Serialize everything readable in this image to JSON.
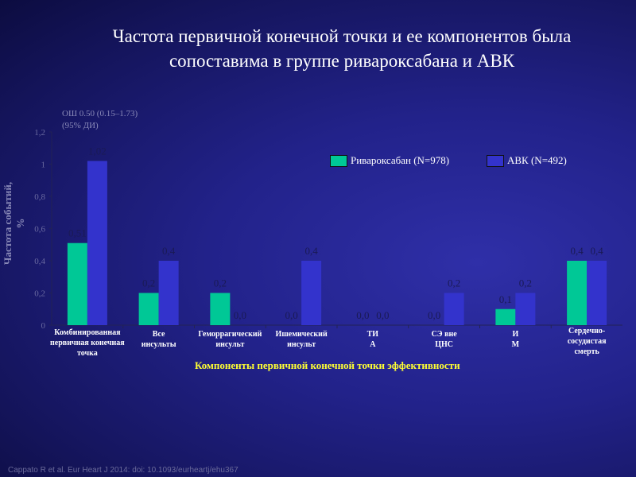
{
  "title": "Частота первичной конечной точки и ее компонентов была сопоставима в группе ривароксабана и АВК",
  "note_line1": "ОШ 0.50 (0.15–1.73)",
  "note_line2": "(95% ДИ)",
  "footer": "Cappato R et al. Eur Heart J 2014: doi: 10.1093/eurheartj/ehu367",
  "chart_data": {
    "type": "bar",
    "ylabel": "Частота событий, %",
    "xlabel": "Компоненты первичной конечной точки эффективности",
    "ylim": [
      0,
      1.2
    ],
    "yticks": [
      "0",
      "0,2",
      "0,4",
      "0,6",
      "0,8",
      "1",
      "1,2"
    ],
    "categories": [
      [
        "Комбинированная",
        "первичная конечная",
        "точка"
      ],
      [
        "Все",
        "инсульты"
      ],
      [
        "Геморрагический",
        "инсульт"
      ],
      [
        "Ишемический",
        "инсульт"
      ],
      [
        "ТИ",
        "А"
      ],
      [
        "СЭ вне",
        "ЦНС"
      ],
      [
        "И",
        "М"
      ],
      [
        "Сердечно-",
        "сосудистая",
        "смерть"
      ]
    ],
    "series": [
      {
        "name": "Ривароксабан (N=978)",
        "color": "#00c896",
        "values": [
          0.51,
          0.2,
          0.2,
          0.0,
          0.0,
          0.0,
          0.1,
          0.4
        ],
        "labels": [
          "0,51",
          "0,2",
          "0,2",
          "0,0",
          "0,0",
          "0,0",
          "0,1",
          "0,4"
        ]
      },
      {
        "name": "АВК (N=492)",
        "color": "#3333cc",
        "values": [
          1.02,
          0.4,
          0.0,
          0.4,
          0.0,
          0.2,
          0.2,
          0.4
        ],
        "labels": [
          "1,02",
          "0,4",
          "0,0",
          "0,4",
          "0,0",
          "0,2",
          "0,2",
          "0,4"
        ]
      }
    ],
    "legend": "top-right"
  }
}
